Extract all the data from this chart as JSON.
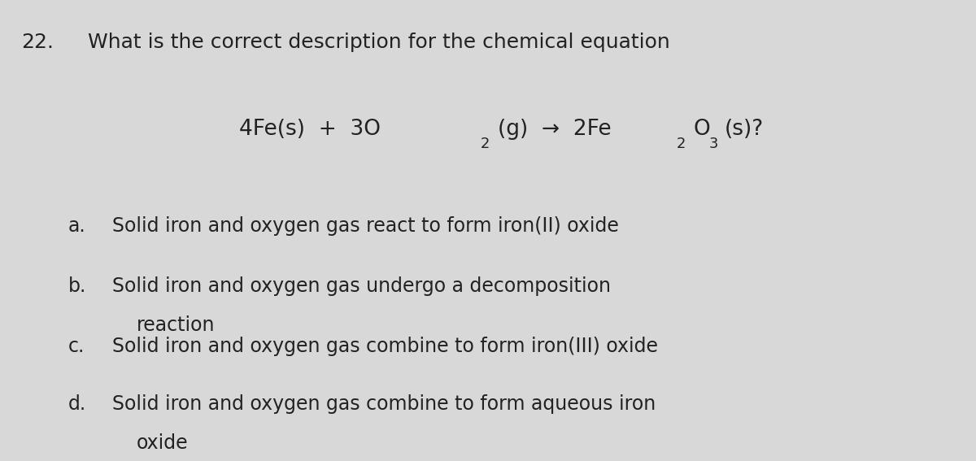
{
  "bg_color": "#d8d8d8",
  "text_color": "#222222",
  "figsize": [
    12.0,
    5.67
  ],
  "dpi": 100,
  "question_number": "22.",
  "question_text": "What is the correct description for the chemical equation",
  "eq_fontsize": 19,
  "question_fontsize": 18,
  "option_fontsize": 17,
  "options": [
    {
      "label": "a.",
      "text": "Solid iron and oxygen gas react to form iron(II) oxide",
      "continuation": null
    },
    {
      "label": "b.",
      "text": "Solid iron and oxygen gas undergo a decomposition",
      "continuation": "reaction"
    },
    {
      "label": "c.",
      "text": "Solid iron and oxygen gas combine to form iron(III) oxide",
      "continuation": null
    },
    {
      "label": "d.",
      "text": "Solid iron and oxygen gas combine to form aqueous iron",
      "continuation": "oxide"
    }
  ]
}
